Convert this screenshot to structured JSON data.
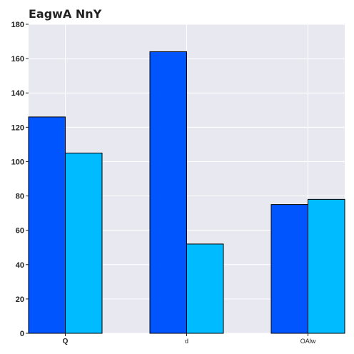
{
  "chart_data": {
    "type": "bar",
    "title": "EagwA NnY",
    "xlabel": "",
    "ylabel": "",
    "categories": [
      "Q",
      "d",
      "OAlw"
    ],
    "series": [
      {
        "values": [
          126,
          164,
          75
        ],
        "color": "#0055ff"
      },
      {
        "values": [
          105,
          52,
          78
        ],
        "color": "#00bbff"
      }
    ],
    "ylim": [
      0,
      180
    ],
    "yticks": [
      0,
      20,
      40,
      60,
      80,
      100,
      120,
      140,
      160,
      180
    ],
    "grid": true,
    "background": "#e8e8f0",
    "bar_edge_color": "#000000"
  }
}
